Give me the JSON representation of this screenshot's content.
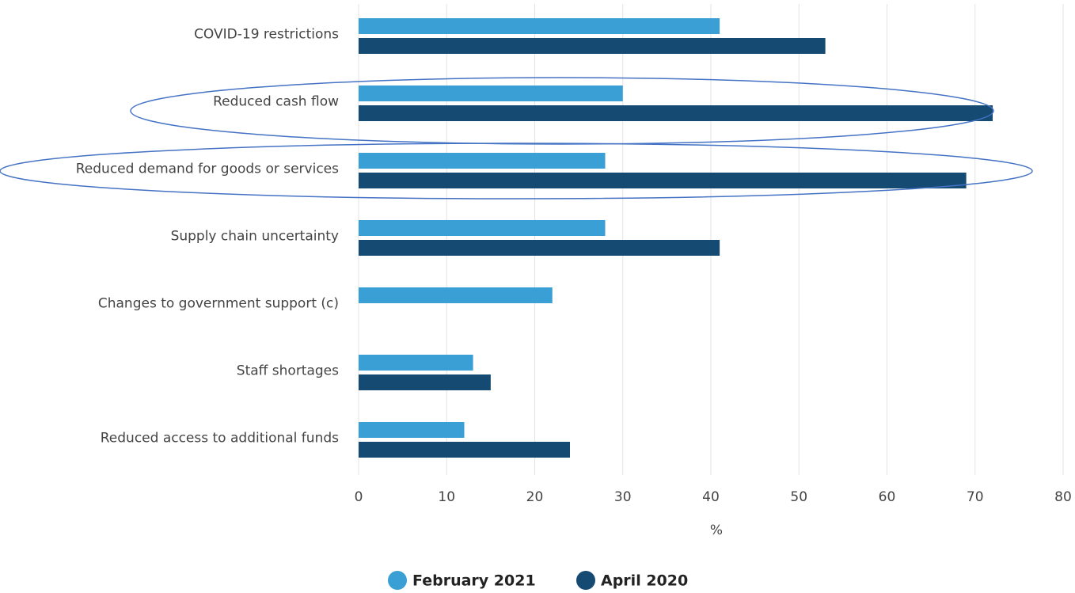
{
  "chart_data": {
    "type": "bar",
    "orientation": "horizontal",
    "categories": [
      "COVID-19 restrictions",
      "Reduced cash flow",
      "Reduced demand for goods or services",
      "Supply chain uncertainty",
      "Changes to government support (c)",
      "Staff shortages",
      "Reduced access to additional funds"
    ],
    "series": [
      {
        "name": "February 2021",
        "color": "#3a9fd5",
        "values": [
          41,
          30,
          28,
          28,
          22,
          13,
          12
        ]
      },
      {
        "name": "April 2020",
        "color": "#154a72",
        "values": [
          53,
          72,
          69,
          41,
          null,
          15,
          24
        ]
      }
    ],
    "xlabel": "%",
    "xlim": [
      0,
      80
    ],
    "xticks": [
      0,
      10,
      20,
      30,
      40,
      50,
      60,
      70,
      80
    ],
    "grid": true
  }
}
